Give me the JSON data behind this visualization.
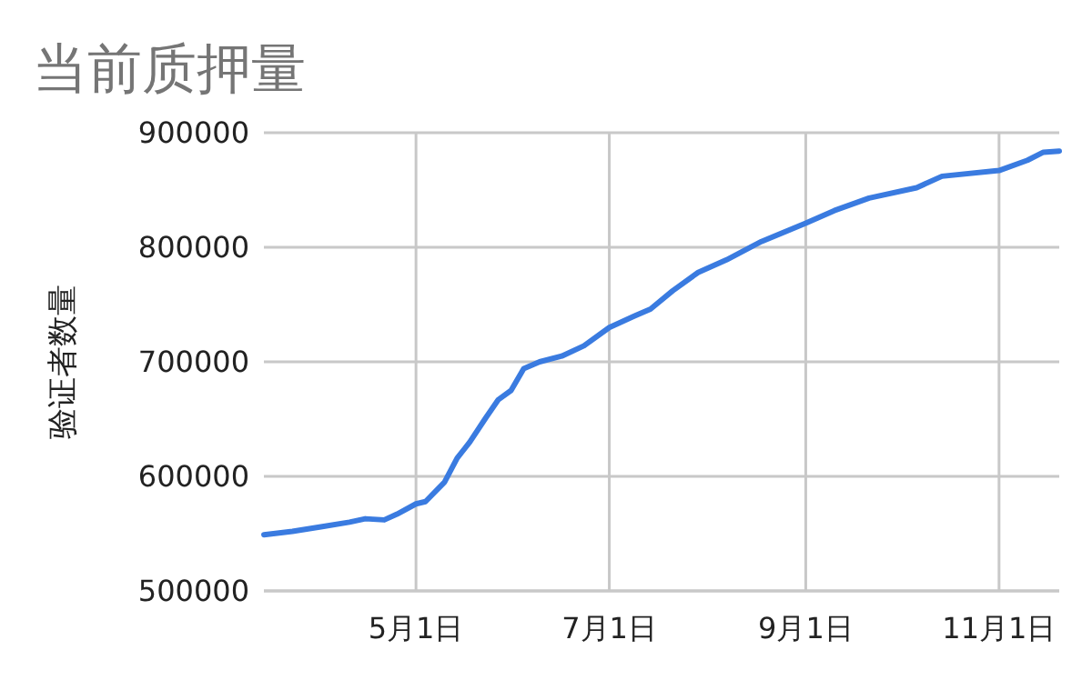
{
  "chart_data": {
    "type": "line",
    "title": "当前质押量",
    "ylabel": "验证者数量",
    "x": [
      "--03-14",
      "--03-23",
      "--04-01",
      "--04-10",
      "--04-15",
      "--04-21",
      "--04-25",
      "--05-01",
      "--05-04",
      "--05-10",
      "--05-14",
      "--05-18",
      "--05-23",
      "--05-27",
      "--05-31",
      "--06-04",
      "--06-09",
      "--06-16",
      "--06-23",
      "--07-01",
      "--07-09",
      "--07-14",
      "--07-21",
      "--07-29",
      "--08-07",
      "--08-18",
      "--09-01",
      "--09-10",
      "--09-21",
      "--10-06",
      "--10-14",
      "--11-01",
      "--11-10",
      "--11-15",
      "--11-20"
    ],
    "series": [
      {
        "color": "#3a7be0",
        "values": [
          549000,
          552000,
          556000,
          560000,
          563000,
          562000,
          567000,
          576000,
          578000,
          595000,
          616000,
          630000,
          651000,
          667000,
          675000,
          694000,
          700000,
          705000,
          714000,
          730000,
          740000,
          746000,
          762000,
          778000,
          789000,
          805000,
          821000,
          832000,
          843000,
          852000,
          862000,
          867000,
          876000,
          883000,
          884000
        ]
      }
    ],
    "xlim": [
      "--03-14",
      "--11-20"
    ],
    "xticks": [
      {
        "value": "--05-01",
        "label": "5月1日"
      },
      {
        "value": "--07-01",
        "label": "7月1日"
      },
      {
        "value": "--09-01",
        "label": "9月1日"
      },
      {
        "value": "--11-01",
        "label": "11月1日"
      }
    ],
    "ylim": [
      500000,
      900000
    ],
    "yticks": [
      500000,
      600000,
      700000,
      800000,
      900000
    ],
    "grid": true,
    "marker": "none",
    "line_style": "solid"
  }
}
